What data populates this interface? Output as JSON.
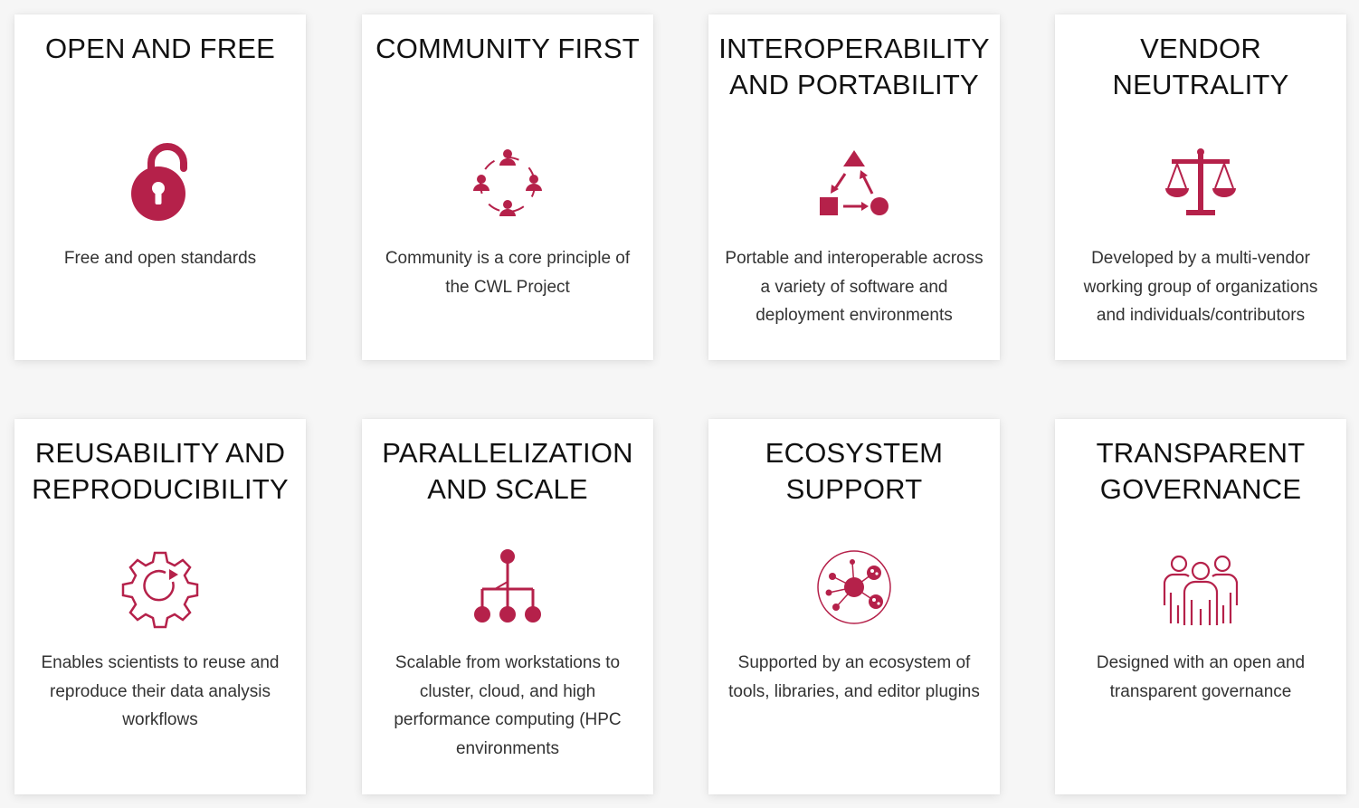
{
  "accent_color": "#b5214a",
  "cards": [
    {
      "title": "OPEN AND FREE",
      "icon": "open-padlock-icon",
      "text": "Free and open standards"
    },
    {
      "title": "COMMUNITY FIRST",
      "icon": "community-circle-icon",
      "text": "Community is a core principle of the CWL Project"
    },
    {
      "title": "INTEROPERABILITY AND PORTABILITY",
      "icon": "shapes-cycle-icon",
      "text": "Portable and interoperable across a variety of software and deployment environments"
    },
    {
      "title": "VENDOR NEUTRALITY",
      "icon": "balance-scale-icon",
      "text": "Developed by a multi-vendor working group of organizations and individuals/contributors"
    },
    {
      "title": "REUSABILITY AND REPRODUCIBILITY",
      "icon": "gear-refresh-icon",
      "text": "Enables scientists to reuse and reproduce their data analysis workflows"
    },
    {
      "title": "PARALLELIZATION AND SCALE",
      "icon": "hierarchy-tree-icon",
      "text": "Scalable from workstations to cluster, cloud, and high performance computing (HPC environments"
    },
    {
      "title": "ECOSYSTEM SUPPORT",
      "icon": "network-ecosystem-icon",
      "text": "Supported by an ecosystem of tools, libraries, and editor plugins"
    },
    {
      "title": "TRANSPARENT GOVERNANCE",
      "icon": "people-group-icon",
      "text": "Designed with an open and transparent governance"
    }
  ]
}
